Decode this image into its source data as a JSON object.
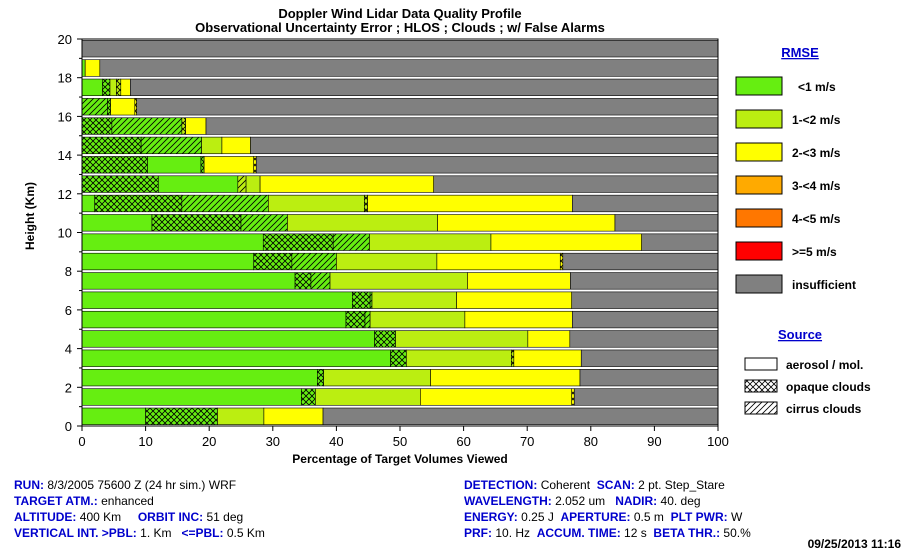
{
  "chart_data": {
    "type": "bar",
    "orientation": "horizontal-stacked",
    "title": "Doppler Wind Lidar Data Quality Profile",
    "subtitle": "Observational Uncertainty Error ; HLOS ; Clouds ; w/ False Alarms",
    "xlabel": "Percentage of Target Volumes Viewed",
    "ylabel": "Height (Km)",
    "xlim": [
      0,
      100
    ],
    "ylim": [
      0,
      20
    ],
    "xticks": [
      "0",
      "10",
      "20",
      "30",
      "40",
      "50",
      "60",
      "70",
      "80",
      "90",
      "100"
    ],
    "yticks": [
      "0",
      "2",
      "4",
      "6",
      "8",
      "10",
      "12",
      "14",
      "16",
      "18",
      "20"
    ],
    "legend": {
      "rmse_title": "RMSE",
      "rmse": [
        {
          "label": "<1 m/s",
          "color": "#66ee11"
        },
        {
          "label": "1-<2 m/s",
          "color": "#bbee11"
        },
        {
          "label": "2-<3 m/s",
          "color": "#ffff00"
        },
        {
          "label": "3-<4 m/s",
          "color": "#ffaa00"
        },
        {
          "label": "4-<5 m/s",
          "color": "#ff7700"
        },
        {
          "label": ">=5 m/s",
          "color": "#ff0000"
        },
        {
          "label": "insufficient",
          "color": "#808080"
        }
      ],
      "source_title": "Source",
      "source": [
        {
          "label": "aerosol / mol.",
          "pattern": "solid"
        },
        {
          "label": "opaque clouds",
          "pattern": "crosshatch"
        },
        {
          "label": "cirrus clouds",
          "pattern": "diagonal"
        }
      ]
    },
    "bars": [
      {
        "y": 0.5,
        "segments": [
          [
            10,
            "g",
            "s"
          ],
          [
            11.3,
            "g",
            "o"
          ],
          [
            7.3,
            "l",
            "s"
          ],
          [
            9.3,
            "y",
            "s"
          ],
          [
            62.1,
            "n",
            "s"
          ]
        ]
      },
      {
        "y": 1.5,
        "segments": [
          [
            34.5,
            "g",
            "s"
          ],
          [
            2.2,
            "g",
            "o"
          ],
          [
            16.5,
            "l",
            "s"
          ],
          [
            23.8,
            "y",
            "s"
          ],
          [
            0.4,
            "y",
            "o"
          ],
          [
            22.6,
            "n",
            "s"
          ]
        ]
      },
      {
        "y": 2.5,
        "segments": [
          [
            37,
            "g",
            "s"
          ],
          [
            1,
            "g",
            "o"
          ],
          [
            16.8,
            "l",
            "s"
          ],
          [
            23.5,
            "y",
            "s"
          ],
          [
            21.7,
            "n",
            "s"
          ]
        ]
      },
      {
        "y": 3.5,
        "segments": [
          [
            48.5,
            "g",
            "s"
          ],
          [
            2.5,
            "g",
            "o"
          ],
          [
            16.5,
            "l",
            "s"
          ],
          [
            0.4,
            "l",
            "o"
          ],
          [
            10.6,
            "y",
            "s"
          ],
          [
            21.5,
            "n",
            "s"
          ]
        ]
      },
      {
        "y": 4.5,
        "segments": [
          [
            46,
            "g",
            "s"
          ],
          [
            3.3,
            "g",
            "o"
          ],
          [
            20.8,
            "l",
            "s"
          ],
          [
            6.6,
            "y",
            "s"
          ],
          [
            23.3,
            "n",
            "s"
          ]
        ]
      },
      {
        "y": 5.5,
        "segments": [
          [
            41.5,
            "g",
            "s"
          ],
          [
            3,
            "g",
            "o"
          ],
          [
            0.8,
            "g",
            "c"
          ],
          [
            14.9,
            "l",
            "s"
          ],
          [
            16.9,
            "y",
            "s"
          ],
          [
            22.9,
            "n",
            "s"
          ]
        ]
      },
      {
        "y": 6.5,
        "segments": [
          [
            42.5,
            "g",
            "s"
          ],
          [
            2.8,
            "g",
            "o"
          ],
          [
            0.3,
            "g",
            "c"
          ],
          [
            13.3,
            "l",
            "s"
          ],
          [
            18.1,
            "y",
            "s"
          ],
          [
            23,
            "n",
            "s"
          ]
        ]
      },
      {
        "y": 7.5,
        "segments": [
          [
            33.5,
            "g",
            "s"
          ],
          [
            2.5,
            "g",
            "o"
          ],
          [
            3,
            "g",
            "c"
          ],
          [
            21.6,
            "l",
            "s"
          ],
          [
            16.2,
            "y",
            "s"
          ],
          [
            23.2,
            "n",
            "s"
          ]
        ]
      },
      {
        "y": 8.5,
        "segments": [
          [
            27,
            "g",
            "s"
          ],
          [
            6,
            "g",
            "o"
          ],
          [
            7,
            "g",
            "c"
          ],
          [
            15.8,
            "l",
            "s"
          ],
          [
            19.4,
            "y",
            "s"
          ],
          [
            0.4,
            "y",
            "o"
          ],
          [
            24.4,
            "n",
            "s"
          ]
        ]
      },
      {
        "y": 9.5,
        "segments": [
          [
            28.5,
            "g",
            "s"
          ],
          [
            11,
            "g",
            "o"
          ],
          [
            5.7,
            "g",
            "c"
          ],
          [
            19.1,
            "l",
            "s"
          ],
          [
            23.7,
            "y",
            "s"
          ],
          [
            12,
            "n",
            "s"
          ]
        ]
      },
      {
        "y": 10.5,
        "segments": [
          [
            11,
            "g",
            "s"
          ],
          [
            14,
            "g",
            "o"
          ],
          [
            7.3,
            "g",
            "c"
          ],
          [
            23.6,
            "l",
            "s"
          ],
          [
            27.9,
            "y",
            "s"
          ],
          [
            16.2,
            "n",
            "s"
          ]
        ]
      },
      {
        "y": 11.5,
        "segments": [
          [
            2,
            "g",
            "s"
          ],
          [
            13.7,
            "g",
            "o"
          ],
          [
            13.6,
            "g",
            "c"
          ],
          [
            15.1,
            "l",
            "s"
          ],
          [
            0.5,
            "l",
            "o"
          ],
          [
            32.2,
            "y",
            "s"
          ],
          [
            22.9,
            "n",
            "s"
          ]
        ]
      },
      {
        "y": 12.5,
        "segments": [
          [
            12,
            "g",
            "o"
          ],
          [
            12.5,
            "g",
            "s"
          ],
          [
            1.3,
            "l",
            "c"
          ],
          [
            2.2,
            "l",
            "s"
          ],
          [
            27.3,
            "y",
            "s"
          ],
          [
            44.7,
            "n",
            "s"
          ]
        ]
      },
      {
        "y": 13.5,
        "segments": [
          [
            10.3,
            "g",
            "o"
          ],
          [
            8.4,
            "g",
            "s"
          ],
          [
            0.5,
            "g",
            "o"
          ],
          [
            7.8,
            "y",
            "s"
          ],
          [
            0.4,
            "y",
            "o"
          ],
          [
            72.6,
            "n",
            "s"
          ]
        ]
      },
      {
        "y": 14.5,
        "segments": [
          [
            9.3,
            "g",
            "o"
          ],
          [
            9.5,
            "g",
            "c"
          ],
          [
            3.2,
            "l",
            "s"
          ],
          [
            4.5,
            "y",
            "s"
          ],
          [
            73.5,
            "n",
            "s"
          ]
        ]
      },
      {
        "y": 15.5,
        "segments": [
          [
            4.7,
            "g",
            "o"
          ],
          [
            11,
            "g",
            "c"
          ],
          [
            0.6,
            "l",
            "o"
          ],
          [
            3.2,
            "y",
            "s"
          ],
          [
            80.5,
            "n",
            "s"
          ]
        ]
      },
      {
        "y": 16.5,
        "segments": [
          [
            4,
            "g",
            "c"
          ],
          [
            0.5,
            "g",
            "o"
          ],
          [
            3.8,
            "y",
            "s"
          ],
          [
            0.3,
            "y",
            "o"
          ],
          [
            91.4,
            "n",
            "s"
          ]
        ]
      },
      {
        "y": 17.5,
        "segments": [
          [
            3.2,
            "g",
            "s"
          ],
          [
            1.2,
            "g",
            "o"
          ],
          [
            1,
            "l",
            "s"
          ],
          [
            0.7,
            "l",
            "o"
          ],
          [
            1.5,
            "y",
            "s"
          ],
          [
            92.4,
            "n",
            "s"
          ]
        ]
      },
      {
        "y": 18.5,
        "segments": [
          [
            0.5,
            "g",
            "s"
          ],
          [
            2.3,
            "y",
            "s"
          ],
          [
            97.2,
            "n",
            "s"
          ]
        ]
      },
      {
        "y": 19.5,
        "segments": [
          [
            100,
            "n",
            "s"
          ]
        ]
      }
    ]
  },
  "info_left": {
    "run_k": "RUN:",
    "run_v": " 8/3/2005 75600 Z (24 hr sim.)",
    "run_extra": "WRF",
    "target_k": "TARGET ATM.:",
    "target_v": "enhanced",
    "alt_k": "ALTITUDE:",
    "alt_v": "400 Km",
    "orbit_k": "ORBIT INC:",
    "orbit_v": "51 deg",
    "vert_k": "VERTICAL INT. >PBL:",
    "vert_v": "1. Km",
    "pbl_k": "<=PBL:",
    "pbl_v": "0.5 Km"
  },
  "info_right": {
    "det_k": "DETECTION:",
    "det_v": "Coherent",
    "scan_k": "SCAN:",
    "scan_v": "2 pt. Step_Stare",
    "wl_k": "WAVELENGTH:",
    "wl_v": "2.052 um",
    "nadir_k": "NADIR:",
    "nadir_v": "40. deg",
    "en_k": "ENERGY:",
    "en_v": "0.25 J",
    "ap_k": "APERTURE:",
    "ap_v": "0.5 m",
    "plt_k": "PLT PWR:",
    "plt_v": "W",
    "prf_k": "PRF:",
    "prf_v": "10. Hz",
    "acc_k": "ACCUM. TIME:",
    "acc_v": "12 s",
    "beta_k": "BETA THR.:",
    "beta_v": "50.%"
  },
  "timestamp": "09/25/2013 11:16"
}
